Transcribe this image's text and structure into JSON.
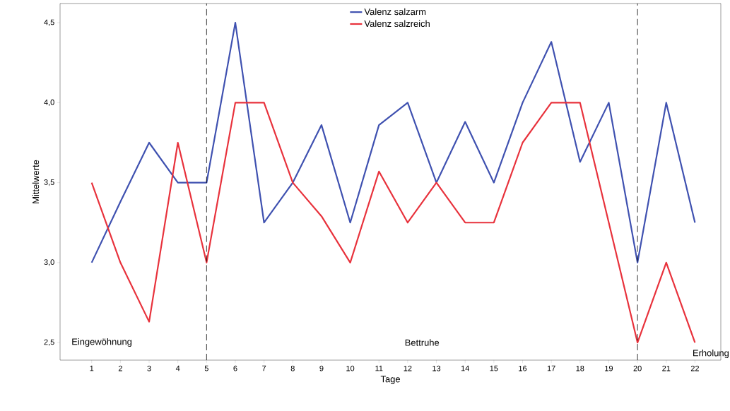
{
  "chart_data": {
    "type": "line",
    "xlabel": "Tage",
    "ylabel": "Mittelwerte",
    "x": [
      1,
      2,
      3,
      4,
      5,
      6,
      7,
      8,
      9,
      10,
      11,
      12,
      13,
      14,
      15,
      16,
      17,
      18,
      19,
      20,
      21,
      22
    ],
    "series": [
      {
        "name": "Valenz salzarm",
        "color": "#3f51b0",
        "values": [
          3.0,
          3.38,
          3.75,
          3.5,
          3.5,
          4.5,
          3.25,
          3.5,
          3.86,
          3.25,
          3.86,
          4.0,
          3.5,
          3.88,
          3.5,
          4.0,
          4.38,
          3.63,
          4.0,
          3.0,
          4.0,
          3.25
        ]
      },
      {
        "name": "Valenz salzreich",
        "color": "#e8323c",
        "values": [
          3.5,
          3.0,
          2.63,
          3.75,
          3.0,
          4.0,
          4.0,
          3.5,
          3.29,
          3.0,
          3.57,
          3.25,
          3.5,
          3.25,
          3.25,
          3.75,
          4.0,
          4.0,
          3.25,
          2.5,
          3.0,
          2.5
        ]
      }
    ],
    "xlim": [
      -0.1,
      22.9
    ],
    "ylim": [
      2.39,
      4.62
    ],
    "xticks": [
      1,
      2,
      3,
      4,
      5,
      6,
      7,
      8,
      9,
      10,
      11,
      12,
      13,
      14,
      15,
      16,
      17,
      18,
      19,
      20,
      21,
      22
    ],
    "yticks": [
      {
        "value": 2.5,
        "label": "2,5"
      },
      {
        "value": 3.0,
        "label": "3,0"
      },
      {
        "value": 3.5,
        "label": "3,5"
      },
      {
        "value": 4.0,
        "label": "4,0"
      },
      {
        "value": 4.5,
        "label": "4,5"
      }
    ],
    "ref_lines": [
      {
        "axis": "x",
        "value": 5,
        "color": "#000000",
        "line_style": "dashed"
      },
      {
        "axis": "x",
        "value": 20,
        "color": "#000000",
        "line_style": "dashed"
      }
    ],
    "annotations": [
      "Eingewöhnung",
      "Bettruhe",
      "Erholung"
    ],
    "legend": "top",
    "grid": false,
    "marker": "none",
    "line_style": "solid"
  }
}
